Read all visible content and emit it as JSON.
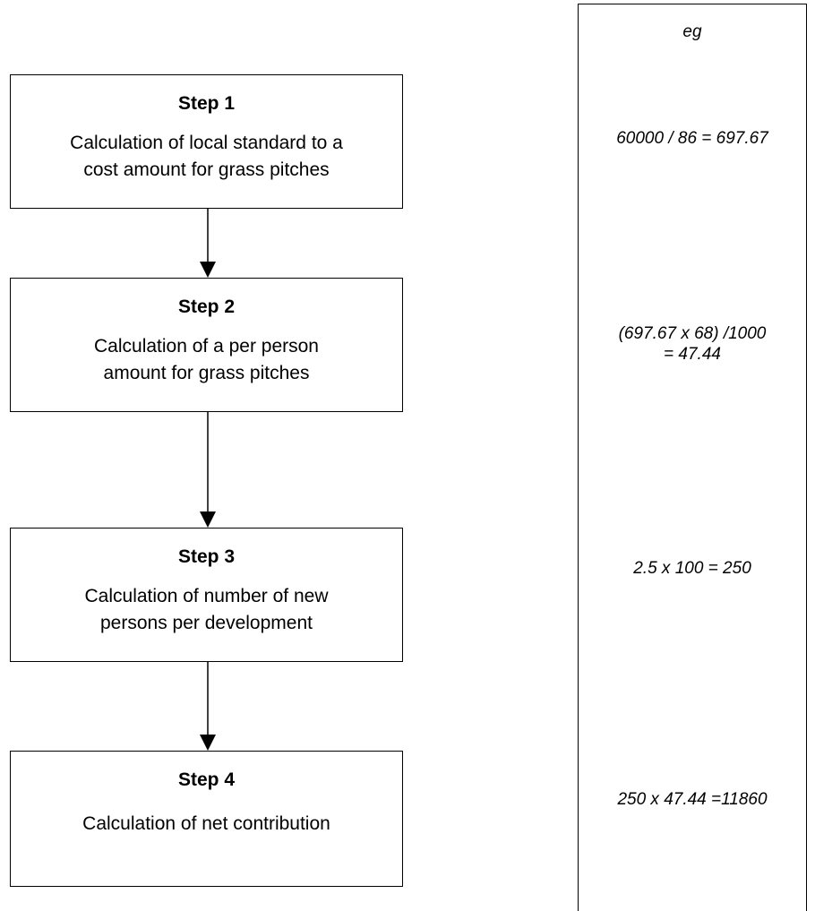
{
  "steps": [
    {
      "title": "Step 1",
      "description_lines": [
        "Calculation of local standard to a",
        "cost amount for grass pitches"
      ]
    },
    {
      "title": "Step 2",
      "description_lines": [
        "Calculation of a per person",
        "amount for grass pitches"
      ]
    },
    {
      "title": "Step 3",
      "description_lines": [
        "Calculation of number of new",
        "persons per development"
      ]
    },
    {
      "title": "Step 4",
      "description_lines": [
        "Calculation of net contribution"
      ]
    }
  ],
  "example_column": {
    "header": "eg",
    "examples": [
      [
        "60000 / 86 = 697.67"
      ],
      [
        "(697.67 x 68) /1000",
        "= 47.44"
      ],
      [
        "2.5 x 100 = 250"
      ],
      [
        "250 x 47.44 =11860"
      ]
    ]
  },
  "colors": {
    "stroke": "#000000",
    "background": "#ffffff"
  }
}
